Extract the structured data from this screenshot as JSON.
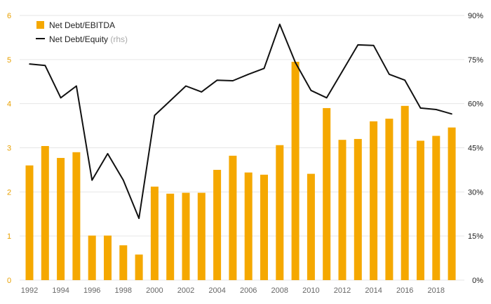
{
  "chart_data": {
    "type": "bar+line",
    "title": "",
    "categories": [
      1992,
      1993,
      1994,
      1995,
      1996,
      1997,
      1998,
      1999,
      2000,
      2001,
      2002,
      2003,
      2004,
      2005,
      2006,
      2007,
      2008,
      2009,
      2010,
      2011,
      2012,
      2013,
      2014,
      2015,
      2016,
      2017,
      2018,
      2019
    ],
    "x_tick_labels": [
      "1992",
      "1994",
      "1996",
      "1998",
      "2000",
      "2002",
      "2004",
      "2006",
      "2008",
      "2010",
      "2012",
      "2014",
      "2016",
      "2018"
    ],
    "series": [
      {
        "name": "Net Debt/EBITDA",
        "type": "bar",
        "axis": "left",
        "color": "#f5a800",
        "values": [
          2.6,
          3.04,
          2.77,
          2.9,
          1.01,
          1.01,
          0.79,
          0.58,
          2.12,
          1.96,
          1.98,
          1.98,
          2.5,
          2.82,
          2.44,
          2.39,
          3.06,
          4.95,
          2.41,
          3.9,
          3.18,
          3.2,
          3.6,
          3.66,
          3.95,
          3.16,
          3.27,
          3.46
        ]
      },
      {
        "name": "Net Debt/Equity",
        "name_suffix": "(rhs)",
        "type": "line",
        "axis": "right",
        "color": "#111111",
        "values": [
          73.5,
          73.0,
          62.0,
          66.0,
          34.0,
          43.0,
          34.0,
          21.0,
          56.0,
          61.0,
          66.0,
          64.0,
          68.0,
          67.8,
          70.0,
          72.0,
          87.0,
          74.0,
          64.5,
          62.0,
          71.0,
          80.0,
          79.8,
          70.0,
          68.0,
          58.5,
          58.0,
          56.5
        ]
      }
    ],
    "y_left": {
      "min": 0,
      "max": 6,
      "ticks": [
        "0",
        "1",
        "2",
        "3",
        "4",
        "5",
        "6"
      ]
    },
    "y_right": {
      "min": 0,
      "max": 90,
      "ticks": [
        "0%",
        "15%",
        "30%",
        "45%",
        "60%",
        "75%",
        "90%"
      ]
    },
    "grid": true,
    "legend_position": "top-left",
    "colors": {
      "bar": "#f5a800",
      "line": "#111111",
      "left_axis_text": "#e8a000",
      "grid": "#e6e6e6",
      "x_axis_text": "#666666",
      "muted": "#aaaaaa"
    }
  }
}
